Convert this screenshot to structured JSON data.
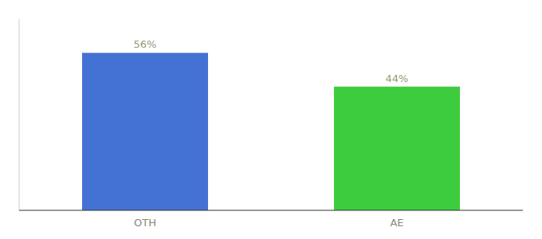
{
  "chart_data": {
    "type": "bar",
    "categories": [
      "OTH",
      "AE"
    ],
    "values": [
      56,
      44
    ],
    "value_labels": [
      "56%",
      "44%"
    ],
    "colors": [
      "#4472d4",
      "#3dcc3d"
    ],
    "ylim": [
      0,
      68
    ],
    "yticks": [],
    "data_labels": true,
    "tick_labels": "x",
    "grid": false
  }
}
